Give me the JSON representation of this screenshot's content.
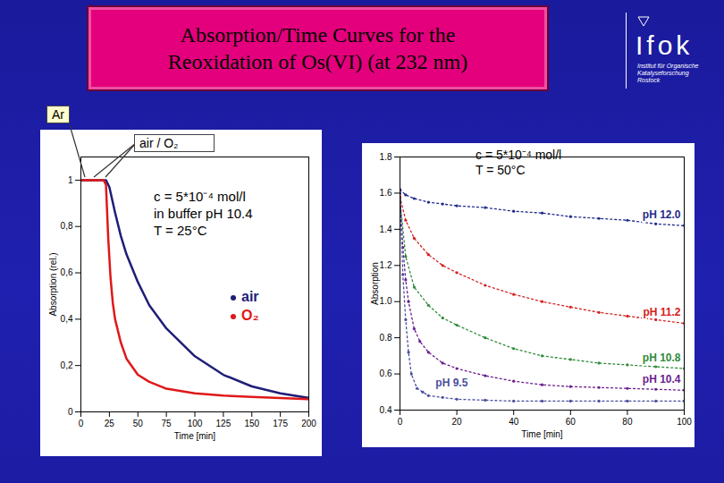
{
  "page": {
    "title": "Absorption/Time Curves for the\nReoxidation of Os(VI) (at 232 nm)",
    "logo": {
      "name": "Ifok",
      "subtitle": "Institut für Organische\nKatalyseforschung\nRostock"
    }
  },
  "chart_data": [
    {
      "type": "line",
      "x_label": "Time [min]",
      "y_label": "Absorption (rel.)",
      "xlim": [
        0,
        200
      ],
      "xticks": [
        0,
        25,
        50,
        75,
        100,
        125,
        150,
        175,
        200
      ],
      "ylim": [
        0,
        1.1
      ],
      "yticks": [
        0,
        {
          "value": 0.2,
          "label": "0,2"
        },
        {
          "value": 0.4,
          "label": "0,4"
        },
        {
          "value": 0.6,
          "label": "0,6"
        },
        {
          "value": 0.8,
          "label": "0,8"
        },
        1
      ],
      "annotations": {
        "conditions": "c = 5*10⁻⁴ mol/l\nin buffer pH 10.4\nT = 25°C",
        "gas_start": "Ar",
        "gas_switch": "air / O₂"
      },
      "line_style": "solid",
      "series": [
        {
          "name": "air",
          "color": "#1e1e78",
          "x": [
            0,
            5,
            10,
            15,
            20,
            22,
            25,
            30,
            35,
            40,
            50,
            60,
            75,
            100,
            125,
            150,
            175,
            200
          ],
          "values": [
            1,
            1,
            1,
            1,
            1,
            1,
            0.97,
            0.86,
            0.76,
            0.68,
            0.56,
            0.46,
            0.36,
            0.24,
            0.16,
            0.11,
            0.08,
            0.06
          ]
        },
        {
          "name": "O₂",
          "color": "#e01818",
          "x": [
            0,
            5,
            10,
            15,
            20,
            22,
            24,
            26,
            28,
            30,
            35,
            40,
            50,
            60,
            75,
            100,
            125,
            150,
            175,
            200
          ],
          "values": [
            1,
            1,
            1,
            1,
            1,
            0.98,
            0.75,
            0.58,
            0.47,
            0.4,
            0.3,
            0.23,
            0.16,
            0.13,
            0.1,
            0.08,
            0.07,
            0.065,
            0.06,
            0.055
          ]
        }
      ]
    },
    {
      "type": "line",
      "x_label": "Time [min]",
      "y_label": "Absorption",
      "xlim": [
        0,
        100
      ],
      "xticks": [
        0,
        20,
        40,
        60,
        80,
        100
      ],
      "ylim": [
        0.4,
        1.8
      ],
      "yticks": [
        0.4,
        0.6,
        0.8,
        {
          "value": 1,
          "label": "1.0"
        },
        1.2,
        1.4,
        1.6,
        1.8
      ],
      "annotations": {
        "conditions": "c = 5*10⁻⁴ mol/l\nT = 50°C"
      },
      "marker": "circle",
      "line_style": "dotted",
      "series": [
        {
          "name": "pH 12.0",
          "color": "#1f2a8a",
          "x": [
            0,
            2,
            5,
            10,
            15,
            20,
            30,
            40,
            50,
            60,
            70,
            80,
            90,
            100
          ],
          "values": [
            1.62,
            1.59,
            1.57,
            1.55,
            1.54,
            1.53,
            1.52,
            1.5,
            1.49,
            1.47,
            1.46,
            1.45,
            1.43,
            1.42
          ]
        },
        {
          "name": "pH 11.2",
          "color": "#d42020",
          "x": [
            0,
            2,
            5,
            10,
            15,
            20,
            30,
            40,
            50,
            60,
            70,
            80,
            90,
            100
          ],
          "values": [
            1.58,
            1.45,
            1.35,
            1.26,
            1.2,
            1.16,
            1.09,
            1.04,
            1.0,
            0.97,
            0.94,
            0.92,
            0.9,
            0.88
          ]
        },
        {
          "name": "pH 10.8",
          "color": "#2e8b3a",
          "x": [
            0,
            2,
            5,
            10,
            15,
            20,
            30,
            40,
            50,
            60,
            70,
            80,
            90,
            100
          ],
          "values": [
            1.56,
            1.25,
            1.08,
            0.98,
            0.91,
            0.87,
            0.8,
            0.74,
            0.7,
            0.68,
            0.66,
            0.65,
            0.64,
            0.63
          ]
        },
        {
          "name": "pH 10.4",
          "color": "#6a1f8f",
          "x": [
            0,
            1,
            2,
            3,
            5,
            7,
            10,
            15,
            20,
            30,
            40,
            50,
            60,
            70,
            80,
            90,
            100
          ],
          "values": [
            1.6,
            1.3,
            1.12,
            1.0,
            0.85,
            0.78,
            0.72,
            0.66,
            0.63,
            0.59,
            0.56,
            0.54,
            0.53,
            0.525,
            0.52,
            0.515,
            0.51
          ]
        },
        {
          "name": "pH 9.5",
          "color": "#4a4e9e",
          "x": [
            0,
            1,
            2,
            3,
            4,
            6,
            8,
            10,
            15,
            20,
            30,
            40,
            50,
            60,
            70,
            80,
            90,
            100
          ],
          "values": [
            1.6,
            1.15,
            0.9,
            0.72,
            0.6,
            0.52,
            0.5,
            0.48,
            0.47,
            0.46,
            0.455,
            0.45,
            0.45,
            0.45,
            0.45,
            0.45,
            0.45,
            0.45
          ]
        }
      ]
    }
  ]
}
